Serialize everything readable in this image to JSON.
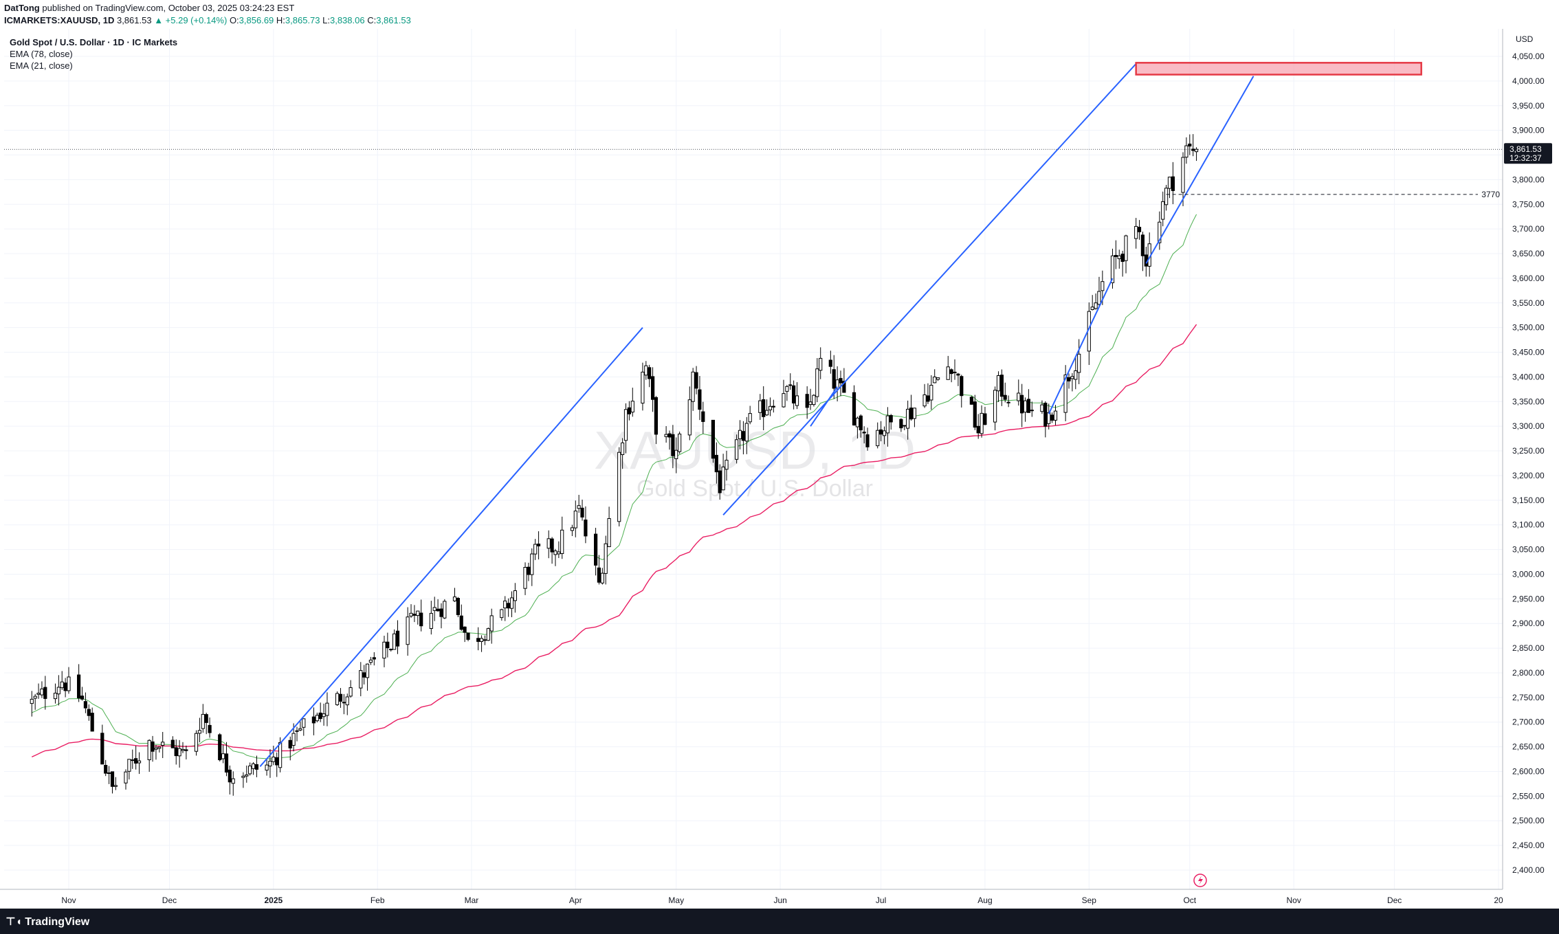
{
  "header": {
    "publisher": "DatTong",
    "published_text": "published on TradingView.com, October 03, 2025 03:24:23 EST",
    "symbol": "ICMARKETS:XAUUSD, 1D",
    "last": "3,861.53",
    "change": "▲ +5.29 (+0.14%)",
    "o_label": "O:",
    "o_value": "3,856.69",
    "h_label": "H:",
    "h_value": "3,865.73",
    "l_label": "L:",
    "l_value": "3,838.06",
    "c_label": "C:",
    "c_value": "3,861.53"
  },
  "legend": {
    "title": "Gold Spot / U.S. Dollar · 1D · IC Markets",
    "ema78": "EMA (78, close)",
    "ema21": "EMA (21, close)"
  },
  "watermark": {
    "symbol": "XAUUSD, 1D",
    "name": "Gold Spot / U.S. Dollar"
  },
  "price_axis": {
    "currency": "USD",
    "last_price_label": "3,861.53",
    "countdown_label": "12:32:37",
    "level_label": "3770"
  },
  "footer": {
    "brand": "TradingView"
  },
  "colors": {
    "up": "#ffffff",
    "down": "#000000",
    "wick": "#000000",
    "ema21": "#4caf50",
    "ema78": "#e91e63",
    "trend_line": "#2962ff",
    "zone_fill": "#f7a4b2",
    "zone_border": "#e53945",
    "grid": "#f0f3fa"
  },
  "chart_data": {
    "type": "candlestick",
    "title": "Gold Spot / U.S. Dollar · 1D · IC Markets",
    "ylim": [
      2360,
      4100
    ],
    "y_ticks": [
      2400,
      2450,
      2500,
      2550,
      2600,
      2650,
      2700,
      2750,
      2800,
      2850,
      2900,
      2950,
      3000,
      3050,
      3100,
      3150,
      3200,
      3250,
      3300,
      3350,
      3400,
      3450,
      3500,
      3550,
      3600,
      3650,
      3700,
      3750,
      3800,
      3850,
      3900,
      3950,
      4000,
      4050
    ],
    "y_tick_labels": [
      "2,400.00",
      "2,450.00",
      "2,500.00",
      "2,550.00",
      "2,600.00",
      "2,650.00",
      "2,700.00",
      "2,750.00",
      "2,800.00",
      "2,850.00",
      "2,900.00",
      "2,950.00",
      "3,000.00",
      "3,050.00",
      "3,100.00",
      "3,150.00",
      "3,200.00",
      "3,250.00",
      "3,300.00",
      "3,350.00",
      "3,400.00",
      "3,450.00",
      "3,500.00",
      "3,550.00",
      "3,600.00",
      "3,650.00",
      "3,700.00",
      "3,750.00",
      "3,800.00",
      "3,850.00",
      "3,900.00",
      "3,950.00",
      "4,000.00",
      "4,050.00"
    ],
    "x_start": "2024-10-21",
    "x_end": "2026-01-01",
    "x_ticks": [
      {
        "label": "Nov",
        "date": "2024-11-01",
        "bold": false
      },
      {
        "label": "Dec",
        "date": "2024-12-01",
        "bold": false
      },
      {
        "label": "2025",
        "date": "2025-01-01",
        "bold": true
      },
      {
        "label": "Feb",
        "date": "2025-02-01",
        "bold": false
      },
      {
        "label": "Mar",
        "date": "2025-03-01",
        "bold": false
      },
      {
        "label": "Apr",
        "date": "2025-04-01",
        "bold": false
      },
      {
        "label": "May",
        "date": "2025-05-01",
        "bold": false
      },
      {
        "label": "Jun",
        "date": "2025-06-01",
        "bold": false
      },
      {
        "label": "Jul",
        "date": "2025-07-01",
        "bold": false
      },
      {
        "label": "Aug",
        "date": "2025-08-01",
        "bold": false
      },
      {
        "label": "Sep",
        "date": "2025-09-01",
        "bold": false
      },
      {
        "label": "Oct",
        "date": "2025-10-01",
        "bold": false
      },
      {
        "label": "Nov",
        "date": "2025-11-01",
        "bold": false
      },
      {
        "label": "Dec",
        "date": "2025-12-01",
        "bold": false
      },
      {
        "label": "20",
        "date": "2026-01-01",
        "bold": false
      }
    ],
    "close_anchors": [
      [
        "2024-10-21",
        2740
      ],
      [
        "2024-10-30",
        2785
      ],
      [
        "2024-11-05",
        2745
      ],
      [
        "2024-11-14",
        2565
      ],
      [
        "2024-11-25",
        2660
      ],
      [
        "2024-12-06",
        2635
      ],
      [
        "2024-12-11",
        2715
      ],
      [
        "2024-12-19",
        2595
      ],
      [
        "2024-12-30",
        2610
      ],
      [
        "2025-01-10",
        2690
      ],
      [
        "2025-01-24",
        2770
      ],
      [
        "2025-02-11",
        2900
      ],
      [
        "2025-02-24",
        2950
      ],
      [
        "2025-02-28",
        2860
      ],
      [
        "2025-03-10",
        2915
      ],
      [
        "2025-03-20",
        3040
      ],
      [
        "2025-03-27",
        3060
      ],
      [
        "2025-04-02",
        3130
      ],
      [
        "2025-04-08",
        2980
      ],
      [
        "2025-04-16",
        3330
      ],
      [
        "2025-04-22",
        3420
      ],
      [
        "2025-04-25",
        3300
      ],
      [
        "2025-05-01",
        3240
      ],
      [
        "2025-05-06",
        3400
      ],
      [
        "2025-05-14",
        3180
      ],
      [
        "2025-05-22",
        3300
      ],
      [
        "2025-06-02",
        3380
      ],
      [
        "2025-06-09",
        3320
      ],
      [
        "2025-06-13",
        3430
      ],
      [
        "2025-06-20",
        3360
      ],
      [
        "2025-06-27",
        3280
      ],
      [
        "2025-07-10",
        3330
      ],
      [
        "2025-07-22",
        3430
      ],
      [
        "2025-07-30",
        3290
      ],
      [
        "2025-08-05",
        3380
      ],
      [
        "2025-08-14",
        3330
      ],
      [
        "2025-08-20",
        3320
      ],
      [
        "2025-08-29",
        3450
      ],
      [
        "2025-09-05",
        3590
      ],
      [
        "2025-09-10",
        3650
      ],
      [
        "2025-09-16",
        3690
      ],
      [
        "2025-09-18",
        3640
      ],
      [
        "2025-09-23",
        3760
      ],
      [
        "2025-09-30",
        3860
      ],
      [
        "2025-10-03",
        3861.53
      ]
    ],
    "last_candle": {
      "date": "2025-10-03",
      "open": 3856.69,
      "high": 3865.73,
      "low": 3838.06,
      "close": 3861.53
    },
    "ema_series": [
      {
        "name": "EMA (21, close)",
        "period": 21
      },
      {
        "name": "EMA (78, close)",
        "period": 78
      }
    ],
    "drawings": {
      "trend_lines": [
        {
          "from": [
            "2024-12-28",
            2610
          ],
          "to": [
            "2025-04-21",
            3500
          ]
        },
        {
          "from": [
            "2025-05-15",
            3120
          ],
          "to": [
            "2025-09-15",
            4035
          ]
        },
        {
          "from": [
            "2025-06-10",
            3300
          ],
          "to": [
            "2025-06-18",
            3380
          ]
        },
        {
          "from": [
            "2025-08-20",
            3325
          ],
          "to": [
            "2025-09-08",
            3600
          ]
        },
        {
          "from": [
            "2025-09-18",
            3630
          ],
          "to": [
            "2025-10-20",
            4010
          ]
        }
      ],
      "zone": {
        "from": "2025-09-15",
        "to": "2025-12-09",
        "low": 4013,
        "high": 4037
      },
      "horizontal_level": {
        "value": 3770,
        "from": "2025-09-24",
        "to": "2025-12-31"
      },
      "last_price_line": 3861.53
    }
  }
}
